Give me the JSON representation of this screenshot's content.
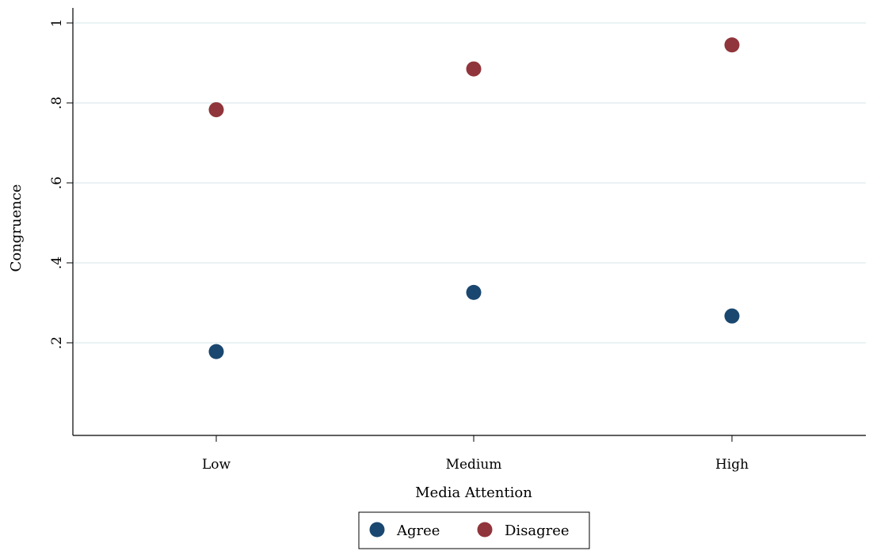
{
  "chart_data": {
    "type": "scatter",
    "title": "",
    "xlabel": "Media Attention",
    "ylabel": "Congruence",
    "categories": [
      "Low",
      "Medium",
      "High"
    ],
    "ylim": [
      0,
      1.04
    ],
    "yticks": [
      {
        "value": 0.2,
        "label": ".2"
      },
      {
        "value": 0.4,
        "label": ".4"
      },
      {
        "value": 0.6,
        "label": ".6"
      },
      {
        "value": 0.8,
        "label": ".8"
      },
      {
        "value": 1.0,
        "label": "1"
      }
    ],
    "grid": true,
    "legend_position": "bottom",
    "series": [
      {
        "name": "Agree",
        "color": "#1a476f",
        "values": [
          0.178,
          0.326,
          0.267
        ]
      },
      {
        "name": "Disagree",
        "color": "#90353b",
        "values": [
          0.783,
          0.885,
          0.945
        ]
      }
    ]
  }
}
